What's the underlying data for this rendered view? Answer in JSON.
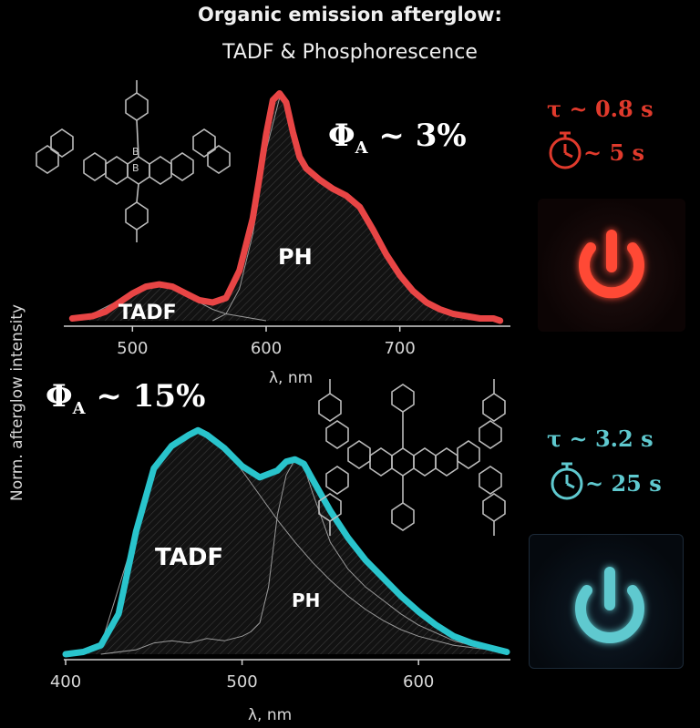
{
  "title": "Organic emission afterglow:",
  "subtitle": "TADF & Phosphorescence",
  "ylabel_shared": "Norm. afterglow intensity",
  "chart_data": [
    {
      "type": "area",
      "panel": "top",
      "xlabel": "λ, nm",
      "xlim": [
        450,
        780
      ],
      "ylim": [
        0,
        1.05
      ],
      "xticks": [
        500,
        600,
        700
      ],
      "color": "#e84545",
      "quantum_yield_text": "ΦA ~ 3%",
      "annotations": [
        "TADF",
        "PH"
      ],
      "series": [
        {
          "name": "total",
          "x": [
            455,
            470,
            480,
            490,
            500,
            510,
            520,
            530,
            540,
            550,
            560,
            570,
            580,
            590,
            595,
            600,
            605,
            610,
            615,
            620,
            625,
            630,
            640,
            650,
            660,
            670,
            680,
            690,
            700,
            710,
            720,
            730,
            740,
            750,
            760,
            770,
            775
          ],
          "y": [
            0.01,
            0.02,
            0.04,
            0.08,
            0.12,
            0.15,
            0.16,
            0.15,
            0.12,
            0.09,
            0.08,
            0.1,
            0.22,
            0.45,
            0.63,
            0.82,
            0.97,
            1.0,
            0.96,
            0.83,
            0.72,
            0.67,
            0.62,
            0.58,
            0.55,
            0.5,
            0.4,
            0.29,
            0.2,
            0.13,
            0.08,
            0.05,
            0.03,
            0.02,
            0.01,
            0.01,
            0.0
          ]
        },
        {
          "name": "TADF",
          "x": [
            455,
            470,
            490,
            510,
            520,
            530,
            540,
            550,
            560,
            570,
            580,
            590,
            600
          ],
          "y": [
            0.01,
            0.03,
            0.09,
            0.15,
            0.16,
            0.15,
            0.12,
            0.08,
            0.05,
            0.03,
            0.02,
            0.01,
            0.0
          ]
        },
        {
          "name": "PH",
          "x": [
            560,
            570,
            580,
            590,
            600,
            610,
            615,
            620,
            630,
            640,
            650,
            660,
            670,
            680,
            690,
            700,
            720,
            740,
            760,
            775
          ],
          "y": [
            0.0,
            0.03,
            0.14,
            0.38,
            0.75,
            0.98,
            0.96,
            0.83,
            0.66,
            0.62,
            0.58,
            0.55,
            0.5,
            0.4,
            0.29,
            0.2,
            0.08,
            0.03,
            0.01,
            0.0
          ]
        }
      ]
    },
    {
      "type": "area",
      "panel": "bottom",
      "xlabel": "λ, nm",
      "xlim": [
        400,
        650
      ],
      "ylim": [
        0,
        1.05
      ],
      "xticks": [
        400,
        500,
        600
      ],
      "color": "#29c4cc",
      "quantum_yield_text": "ΦA ~ 15%",
      "annotations": [
        "TADF",
        "PH"
      ],
      "series": [
        {
          "name": "total",
          "x": [
            400,
            410,
            420,
            430,
            440,
            450,
            460,
            470,
            475,
            480,
            490,
            500,
            510,
            520,
            525,
            530,
            535,
            540,
            550,
            560,
            570,
            580,
            590,
            600,
            610,
            620,
            630,
            640,
            650
          ],
          "y": [
            0.0,
            0.01,
            0.04,
            0.18,
            0.55,
            0.83,
            0.93,
            0.98,
            1.0,
            0.98,
            0.92,
            0.84,
            0.79,
            0.82,
            0.86,
            0.87,
            0.85,
            0.78,
            0.64,
            0.52,
            0.42,
            0.34,
            0.26,
            0.19,
            0.13,
            0.08,
            0.05,
            0.03,
            0.01
          ]
        },
        {
          "name": "TADF",
          "x": [
            400,
            420,
            440,
            450,
            460,
            470,
            475,
            480,
            490,
            500,
            510,
            520,
            530,
            540,
            550,
            560,
            570,
            580,
            590,
            600,
            620,
            640,
            650
          ],
          "y": [
            0.0,
            0.04,
            0.55,
            0.83,
            0.93,
            0.98,
            1.0,
            0.98,
            0.92,
            0.82,
            0.71,
            0.6,
            0.5,
            0.41,
            0.33,
            0.26,
            0.2,
            0.15,
            0.11,
            0.08,
            0.04,
            0.02,
            0.01
          ]
        },
        {
          "name": "PH",
          "x": [
            420,
            440,
            450,
            460,
            470,
            480,
            490,
            500,
            505,
            510,
            515,
            520,
            525,
            530,
            535,
            540,
            550,
            560,
            570,
            580,
            590,
            600,
            620,
            640,
            650
          ],
          "y": [
            0.0,
            0.02,
            0.05,
            0.06,
            0.05,
            0.07,
            0.06,
            0.08,
            0.1,
            0.14,
            0.3,
            0.62,
            0.8,
            0.87,
            0.84,
            0.72,
            0.5,
            0.38,
            0.3,
            0.24,
            0.18,
            0.13,
            0.06,
            0.02,
            0.01
          ]
        }
      ]
    }
  ],
  "panels": {
    "red": {
      "tau": "τ ~ 0.8 s",
      "duration": "~ 5 s",
      "color": "#e03a2c"
    },
    "cyan": {
      "tau": "τ ~ 3.2 s",
      "duration": "~ 25 s",
      "color": "#5fc9cf"
    }
  },
  "icons": [
    "stopwatch-icon",
    "power-icon",
    "molecule-structure"
  ]
}
